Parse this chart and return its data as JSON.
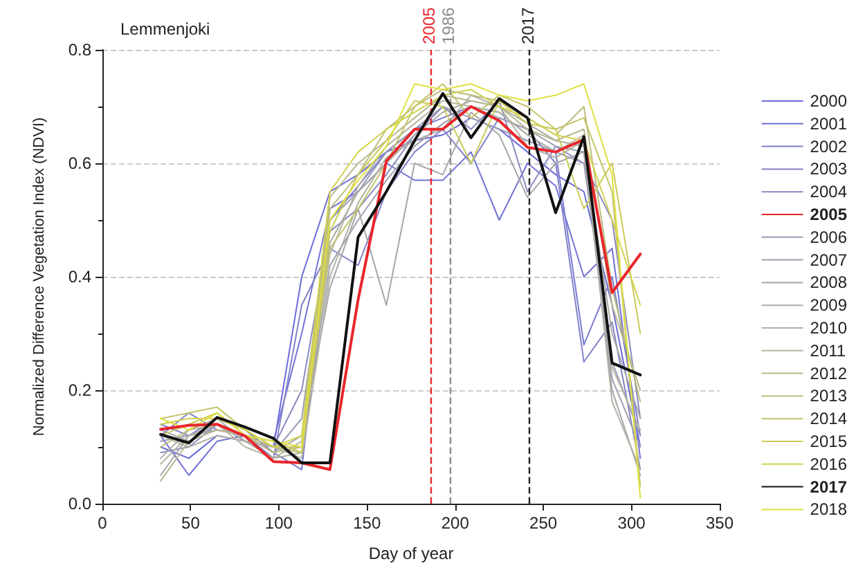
{
  "chart_data": {
    "type": "line",
    "title": "Lemmenjoki",
    "xlabel": "Day of year",
    "ylabel": "Normalized Difference Vegetation Index (NDVI)",
    "x": [
      33,
      49,
      65,
      81,
      97,
      113,
      129,
      145,
      161,
      177,
      193,
      209,
      225,
      241,
      257,
      273,
      289,
      305
    ],
    "xlim": [
      0,
      350
    ],
    "xticks": [
      0,
      50,
      100,
      150,
      200,
      250,
      300,
      350
    ],
    "ylim": [
      0,
      0.8
    ],
    "yticks": [
      {
        "value": 0,
        "label": "0.0"
      },
      {
        "value": 0.2,
        "label": "0.2"
      },
      {
        "value": 0.4,
        "label": "0.4"
      },
      {
        "value": 0.6,
        "label": "0.6"
      },
      {
        "value": 0.8,
        "label": "0.8"
      }
    ],
    "grid": "y",
    "legend": "right",
    "marker": "none",
    "line_style": "solid",
    "ref_lines": [
      {
        "axis": "x",
        "value": 186,
        "color": "#e8262b",
        "line_style": "dashed"
      },
      {
        "axis": "x",
        "value": 197,
        "color": "#8c8c8c",
        "line_style": "dashed"
      },
      {
        "axis": "x",
        "value": 242,
        "color": "#222222",
        "line_style": "dashed"
      }
    ],
    "annotations": [
      {
        "text": "2005",
        "x": 186,
        "y": 0.8
      },
      {
        "text": "1986",
        "x": 197,
        "y": 0.8
      },
      {
        "text": "2017",
        "x": 242,
        "y": 0.8
      }
    ],
    "series": [
      {
        "name": "2000",
        "color": "#6a6adb",
        "values": [
          0.1,
          0.08,
          0.12,
          0.11,
          0.1,
          0.4,
          0.55,
          0.58,
          0.62,
          0.64,
          0.65,
          0.68,
          0.66,
          0.62,
          0.58,
          0.55,
          0.35,
          0.1
        ]
      },
      {
        "name": "2001",
        "color": "#7272d6",
        "values": [
          0.12,
          0.05,
          0.11,
          0.12,
          0.11,
          0.3,
          0.52,
          0.55,
          0.6,
          0.57,
          0.57,
          0.62,
          0.5,
          0.6,
          0.56,
          0.4,
          0.45,
          0.08
        ]
      },
      {
        "name": "2002",
        "color": "#7a7acf",
        "values": [
          0.14,
          0.12,
          0.15,
          0.13,
          0.09,
          0.06,
          0.5,
          0.56,
          0.62,
          0.66,
          0.68,
          0.7,
          0.69,
          0.65,
          0.62,
          0.28,
          0.4,
          0.12
        ]
      },
      {
        "name": "2003",
        "color": "#8282c8",
        "values": [
          0.12,
          0.16,
          0.13,
          0.12,
          0.08,
          0.35,
          0.45,
          0.42,
          0.55,
          0.62,
          0.66,
          0.6,
          0.68,
          0.66,
          0.6,
          0.25,
          0.32,
          0.06
        ]
      },
      {
        "name": "2004",
        "color": "#8a8ac2",
        "values": [
          0.09,
          0.1,
          0.14,
          0.12,
          0.1,
          0.2,
          0.48,
          0.52,
          0.58,
          0.65,
          0.7,
          0.66,
          0.71,
          0.55,
          0.63,
          0.6,
          0.5,
          0.15
        ]
      },
      {
        "name": "2005",
        "color": "#e8262b",
        "values": [
          0.131,
          0.138,
          0.14,
          0.119,
          0.074,
          0.072,
          0.06,
          0.36,
          0.604,
          0.66,
          0.66,
          0.7,
          0.675,
          0.628,
          0.62,
          0.642,
          0.372,
          0.44
        ]
      },
      {
        "name": "2006",
        "color": "#9a9ab8",
        "values": [
          0.11,
          0.12,
          0.13,
          0.12,
          0.09,
          0.15,
          0.5,
          0.55,
          0.62,
          0.66,
          0.7,
          0.68,
          0.66,
          0.64,
          0.62,
          0.6,
          0.25,
          0.12
        ]
      },
      {
        "name": "2007",
        "color": "#a0a0b0",
        "values": [
          0.13,
          0.11,
          0.14,
          0.11,
          0.1,
          0.1,
          0.42,
          0.5,
          0.57,
          0.63,
          0.67,
          0.7,
          0.68,
          0.66,
          0.63,
          0.62,
          0.22,
          0.1
        ]
      },
      {
        "name": "2008",
        "color": "#a6a6a8",
        "values": [
          0.05,
          0.12,
          0.13,
          0.12,
          0.09,
          0.12,
          0.38,
          0.52,
          0.35,
          0.6,
          0.58,
          0.69,
          0.65,
          0.54,
          0.6,
          0.62,
          0.2,
          0.05
        ]
      },
      {
        "name": "2009",
        "color": "#ababa6",
        "values": [
          0.08,
          0.13,
          0.15,
          0.11,
          0.08,
          0.09,
          0.46,
          0.55,
          0.6,
          0.65,
          0.69,
          0.71,
          0.7,
          0.67,
          0.64,
          0.63,
          0.3,
          0.15
        ]
      },
      {
        "name": "2010",
        "color": "#b0b0a4",
        "values": [
          0.12,
          0.1,
          0.12,
          0.11,
          0.1,
          0.08,
          0.4,
          0.53,
          0.61,
          0.64,
          0.66,
          0.72,
          0.7,
          0.63,
          0.61,
          0.64,
          0.18,
          0.06
        ]
      },
      {
        "name": "2011",
        "color": "#b5b5a0",
        "values": [
          0.07,
          0.12,
          0.14,
          0.1,
          0.08,
          0.11,
          0.44,
          0.56,
          0.63,
          0.67,
          0.71,
          0.7,
          0.69,
          0.65,
          0.62,
          0.65,
          0.24,
          0.13
        ]
      },
      {
        "name": "2012",
        "color": "#b8b88e",
        "values": [
          0.04,
          0.11,
          0.13,
          0.12,
          0.09,
          0.1,
          0.54,
          0.6,
          0.64,
          0.68,
          0.72,
          0.71,
          0.7,
          0.66,
          0.64,
          0.66,
          0.35,
          0.2
        ]
      },
      {
        "name": "2013",
        "color": "#bcbc7e",
        "values": [
          0.1,
          0.13,
          0.14,
          0.12,
          0.1,
          0.09,
          0.52,
          0.58,
          0.66,
          0.7,
          0.73,
          0.72,
          0.71,
          0.68,
          0.65,
          0.7,
          0.38,
          0.18
        ]
      },
      {
        "name": "2014",
        "color": "#c4c46a",
        "values": [
          0.15,
          0.16,
          0.17,
          0.13,
          0.1,
          0.1,
          0.45,
          0.52,
          0.6,
          0.7,
          0.74,
          0.68,
          0.72,
          0.7,
          0.66,
          0.68,
          0.55,
          0.03
        ]
      },
      {
        "name": "2015",
        "color": "#cbcb5a",
        "values": [
          0.12,
          0.14,
          0.16,
          0.12,
          0.11,
          0.09,
          0.48,
          0.58,
          0.64,
          0.71,
          0.7,
          0.6,
          0.71,
          0.67,
          0.66,
          0.52,
          0.6,
          0.3
        ]
      },
      {
        "name": "2016",
        "color": "#d2d24e",
        "values": [
          0.14,
          0.15,
          0.15,
          0.13,
          0.1,
          0.12,
          0.55,
          0.62,
          0.66,
          0.69,
          0.72,
          0.73,
          0.7,
          0.68,
          0.65,
          0.64,
          0.5,
          0.35
        ]
      },
      {
        "name": "2017",
        "color": "#111111",
        "values": [
          0.122,
          0.107,
          0.152,
          0.135,
          0.115,
          0.072,
          0.072,
          0.47,
          0.55,
          0.64,
          0.723,
          0.645,
          0.714,
          0.68,
          0.513,
          0.647,
          0.248,
          0.227
        ]
      },
      {
        "name": "2018",
        "color": "#e0e040",
        "values": [
          0.15,
          0.13,
          0.16,
          0.12,
          0.11,
          0.1,
          0.5,
          0.57,
          0.63,
          0.74,
          0.73,
          0.74,
          0.72,
          0.71,
          0.72,
          0.74,
          0.58,
          0.01
        ]
      }
    ]
  }
}
